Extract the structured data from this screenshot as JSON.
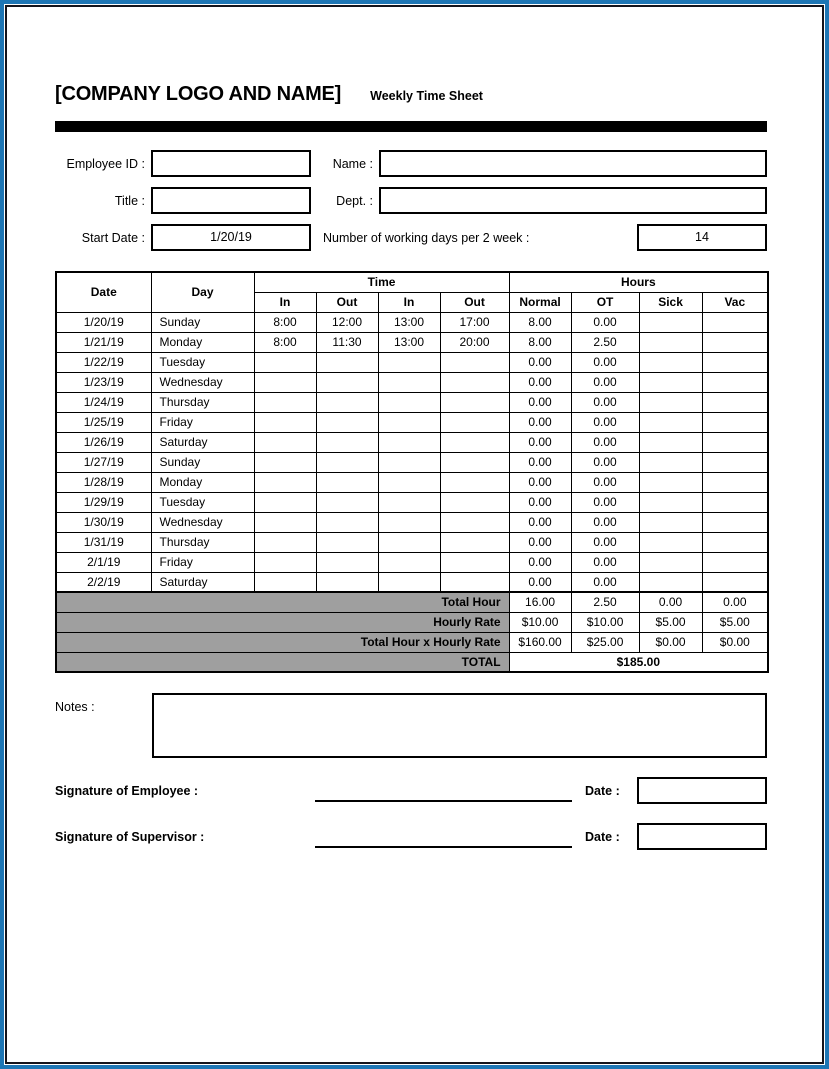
{
  "header": {
    "company": "[COMPANY LOGO AND NAME]",
    "title": "Weekly Time Sheet"
  },
  "form": {
    "employee_id_label": "Employee ID :",
    "employee_id_value": "",
    "name_label": "Name :",
    "name_value": "",
    "title_label": "Title :",
    "title_value": "",
    "dept_label": "Dept. :",
    "dept_value": "",
    "start_date_label": "Start Date :",
    "start_date_value": "1/20/19",
    "working_days_label": "Number of working days per 2 week :",
    "working_days_value": "14"
  },
  "table": {
    "headers": {
      "date": "Date",
      "day": "Day",
      "time_group": "Time",
      "hours_group": "Hours",
      "time_cols": [
        "In",
        "Out",
        "In",
        "Out"
      ],
      "hours_cols": [
        "Normal",
        "OT",
        "Sick",
        "Vac"
      ]
    },
    "rows": [
      {
        "date": "1/20/19",
        "day": "Sunday",
        "in1": "8:00",
        "out1": "12:00",
        "in2": "13:00",
        "out2": "17:00",
        "normal": "8.00",
        "ot": "0.00",
        "sick": "",
        "vac": ""
      },
      {
        "date": "1/21/19",
        "day": "Monday",
        "in1": "8:00",
        "out1": "11:30",
        "in2": "13:00",
        "out2": "20:00",
        "normal": "8.00",
        "ot": "2.50",
        "sick": "",
        "vac": ""
      },
      {
        "date": "1/22/19",
        "day": "Tuesday",
        "in1": "",
        "out1": "",
        "in2": "",
        "out2": "",
        "normal": "0.00",
        "ot": "0.00",
        "sick": "",
        "vac": ""
      },
      {
        "date": "1/23/19",
        "day": "Wednesday",
        "in1": "",
        "out1": "",
        "in2": "",
        "out2": "",
        "normal": "0.00",
        "ot": "0.00",
        "sick": "",
        "vac": ""
      },
      {
        "date": "1/24/19",
        "day": "Thursday",
        "in1": "",
        "out1": "",
        "in2": "",
        "out2": "",
        "normal": "0.00",
        "ot": "0.00",
        "sick": "",
        "vac": ""
      },
      {
        "date": "1/25/19",
        "day": "Friday",
        "in1": "",
        "out1": "",
        "in2": "",
        "out2": "",
        "normal": "0.00",
        "ot": "0.00",
        "sick": "",
        "vac": ""
      },
      {
        "date": "1/26/19",
        "day": "Saturday",
        "in1": "",
        "out1": "",
        "in2": "",
        "out2": "",
        "normal": "0.00",
        "ot": "0.00",
        "sick": "",
        "vac": ""
      },
      {
        "date": "1/27/19",
        "day": "Sunday",
        "in1": "",
        "out1": "",
        "in2": "",
        "out2": "",
        "normal": "0.00",
        "ot": "0.00",
        "sick": "",
        "vac": ""
      },
      {
        "date": "1/28/19",
        "day": "Monday",
        "in1": "",
        "out1": "",
        "in2": "",
        "out2": "",
        "normal": "0.00",
        "ot": "0.00",
        "sick": "",
        "vac": ""
      },
      {
        "date": "1/29/19",
        "day": "Tuesday",
        "in1": "",
        "out1": "",
        "in2": "",
        "out2": "",
        "normal": "0.00",
        "ot": "0.00",
        "sick": "",
        "vac": ""
      },
      {
        "date": "1/30/19",
        "day": "Wednesday",
        "in1": "",
        "out1": "",
        "in2": "",
        "out2": "",
        "normal": "0.00",
        "ot": "0.00",
        "sick": "",
        "vac": ""
      },
      {
        "date": "1/31/19",
        "day": "Thursday",
        "in1": "",
        "out1": "",
        "in2": "",
        "out2": "",
        "normal": "0.00",
        "ot": "0.00",
        "sick": "",
        "vac": ""
      },
      {
        "date": "2/1/19",
        "day": "Friday",
        "in1": "",
        "out1": "",
        "in2": "",
        "out2": "",
        "normal": "0.00",
        "ot": "0.00",
        "sick": "",
        "vac": ""
      },
      {
        "date": "2/2/19",
        "day": "Saturday",
        "in1": "",
        "out1": "",
        "in2": "",
        "out2": "",
        "normal": "0.00",
        "ot": "0.00",
        "sick": "",
        "vac": ""
      }
    ],
    "footer": [
      {
        "label": "Total Hour",
        "values": [
          "16.00",
          "2.50",
          "0.00",
          "0.00"
        ]
      },
      {
        "label": "Hourly Rate",
        "values": [
          "$10.00",
          "$10.00",
          "$5.00",
          "$5.00"
        ]
      },
      {
        "label": "Total Hour x Hourly Rate",
        "values": [
          "$160.00",
          "$25.00",
          "$0.00",
          "$0.00"
        ]
      }
    ],
    "total_label": "TOTAL",
    "total_value": "$185.00"
  },
  "notes": {
    "label": "Notes :",
    "value": ""
  },
  "signatures": [
    {
      "label": "Signature of Employee :",
      "date_label": "Date :",
      "date_value": ""
    },
    {
      "label": "Signature of Supervisor :",
      "date_label": "Date :",
      "date_value": ""
    }
  ],
  "colors": {
    "page_border_outer": "#1d76b5",
    "page_border_inner": "#14141c",
    "header_bar": "#000000",
    "summary_row_bg": "#9f9f9f"
  }
}
